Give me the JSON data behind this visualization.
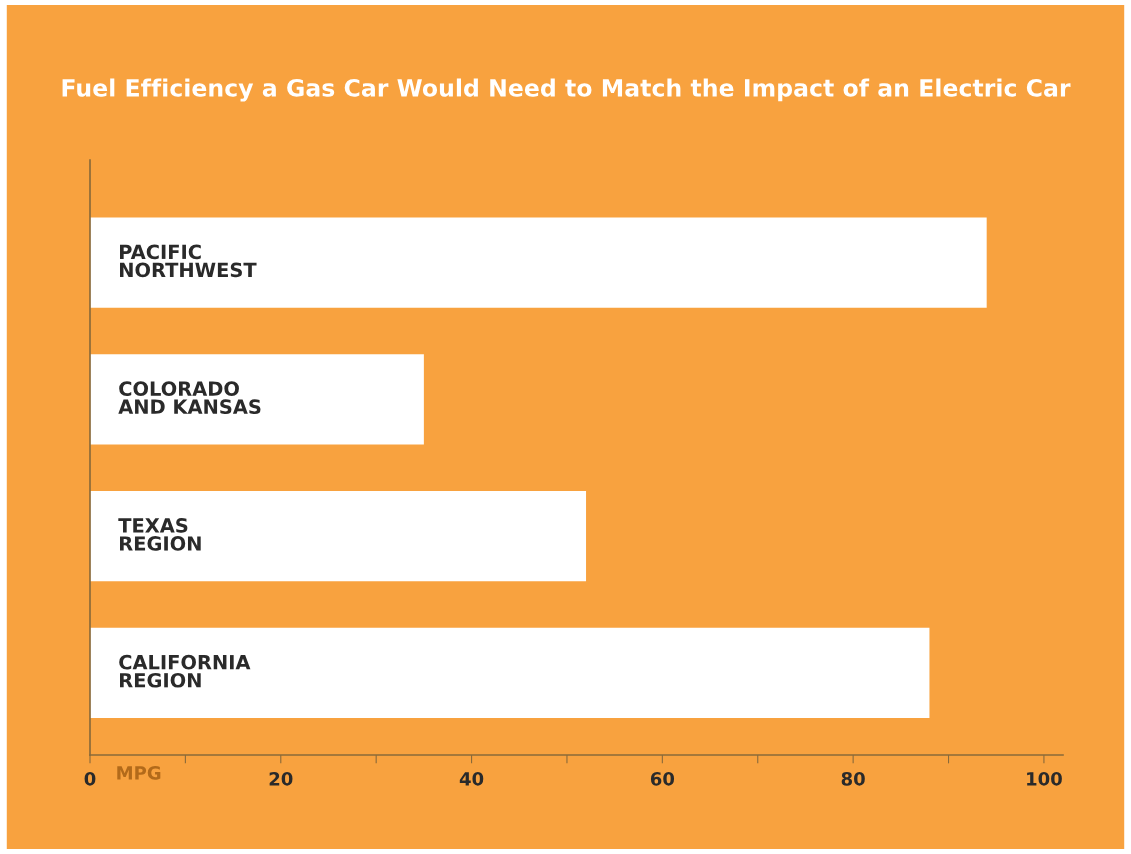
{
  "chart_data": {
    "type": "bar",
    "orientation": "horizontal",
    "title": "Fuel Efficiency a Gas Car Would Need to Match the Impact of an Electric Car",
    "xlabel": "MPG",
    "categories": [
      "PACIFIC\nNORTHWEST",
      "COLORADO\nAND KANSAS",
      "TEXAS\nREGION",
      "CALIFORNIA\nREGION"
    ],
    "values": [
      94,
      35,
      52,
      88
    ],
    "color": "#ffffff",
    "xlim": [
      0,
      102
    ],
    "xticks": [
      0,
      {
        "value": 10,
        "label": null
      },
      20,
      {
        "value": 30,
        "label": null
      },
      40,
      {
        "value": 50,
        "label": null
      },
      60,
      {
        "value": 70,
        "label": null
      },
      80,
      {
        "value": 90,
        "label": null
      },
      100
    ],
    "grid": false
  }
}
